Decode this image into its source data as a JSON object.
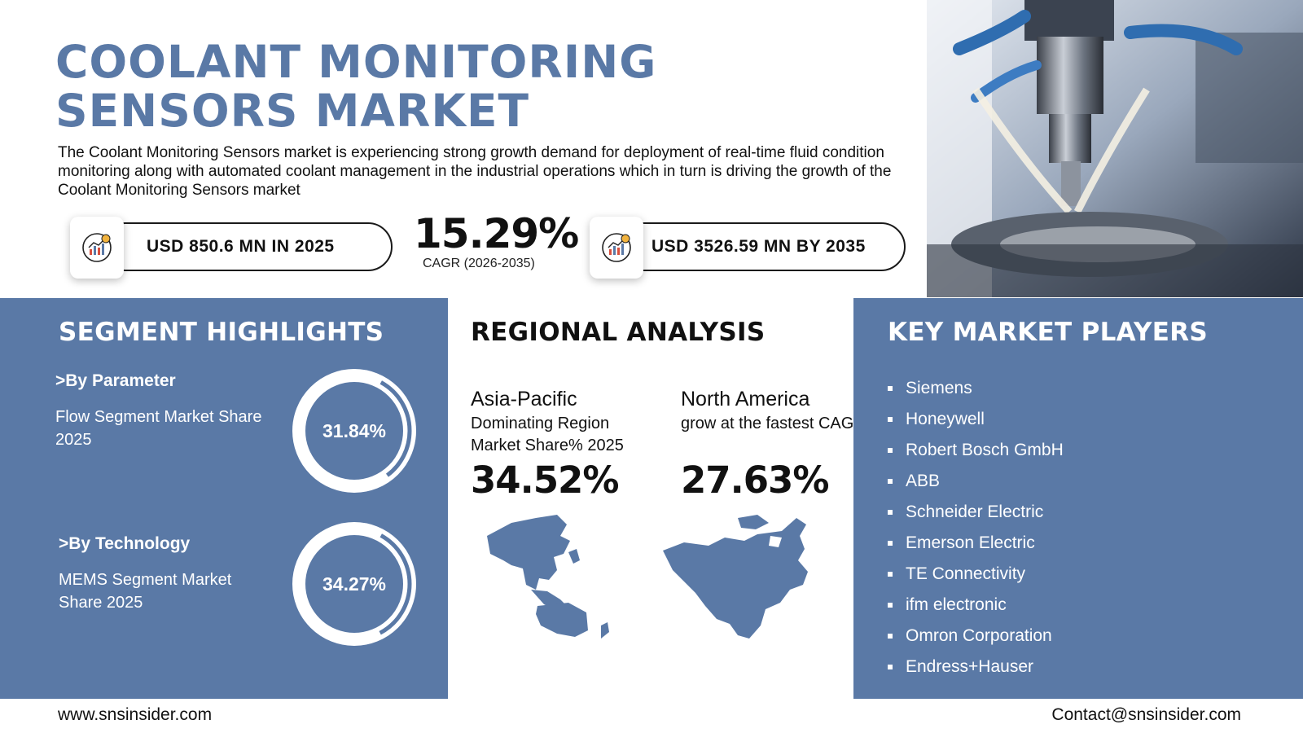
{
  "header": {
    "title_line1": "COOLANT MONITORING",
    "title_line2": "SENSORS MARKET",
    "description": "The Coolant Monitoring Sensors market is experiencing strong growth demand for deployment of real-time fluid condition monitoring along with automated coolant management in the industrial operations which in turn is driving the growth of the Coolant Monitoring Sensors market"
  },
  "stats": {
    "market_2025": "USD 850.6 MN IN 2025",
    "cagr_value": "15.29%",
    "cagr_label": "CAGR (2026-2035)",
    "market_2035": "USD 3526.59 MN BY 2035",
    "icon": "growth-chart-coin-icon"
  },
  "segments": {
    "heading": "SEGMENT HIGHLIGHTS",
    "items": [
      {
        "heading": ">By Parameter",
        "description": "Flow Segment Market Share 2025",
        "value": "31.84%",
        "share": 0.3184
      },
      {
        "heading": ">By Technology",
        "description": "MEMS Segment Market Share 2025",
        "value": "34.27%",
        "share": 0.3427
      }
    ]
  },
  "regional": {
    "heading": "REGIONAL ANALYSIS",
    "regions": [
      {
        "name": "Asia-Pacific",
        "description": "Dominating Region Market Share% 2025",
        "value": "34.52%"
      },
      {
        "name": "North America",
        "description": "grow at the fastest CAGR",
        "value": "27.63%"
      }
    ]
  },
  "players": {
    "heading": "KEY MARKET PLAYERS",
    "items": [
      "Siemens",
      "Honeywell",
      "Robert Bosch GmbH",
      "ABB",
      "Schneider Electric",
      "Emerson Electric",
      "TE Connectivity",
      "ifm electronic",
      "Omron Corporation",
      "Endress+Hauser"
    ]
  },
  "footer": {
    "website": "www.snsinsider.com",
    "contact": "Contact@snsinsider.com"
  },
  "colors": {
    "accent": "#5a79a6",
    "text": "#111111",
    "background": "#ffffff"
  }
}
